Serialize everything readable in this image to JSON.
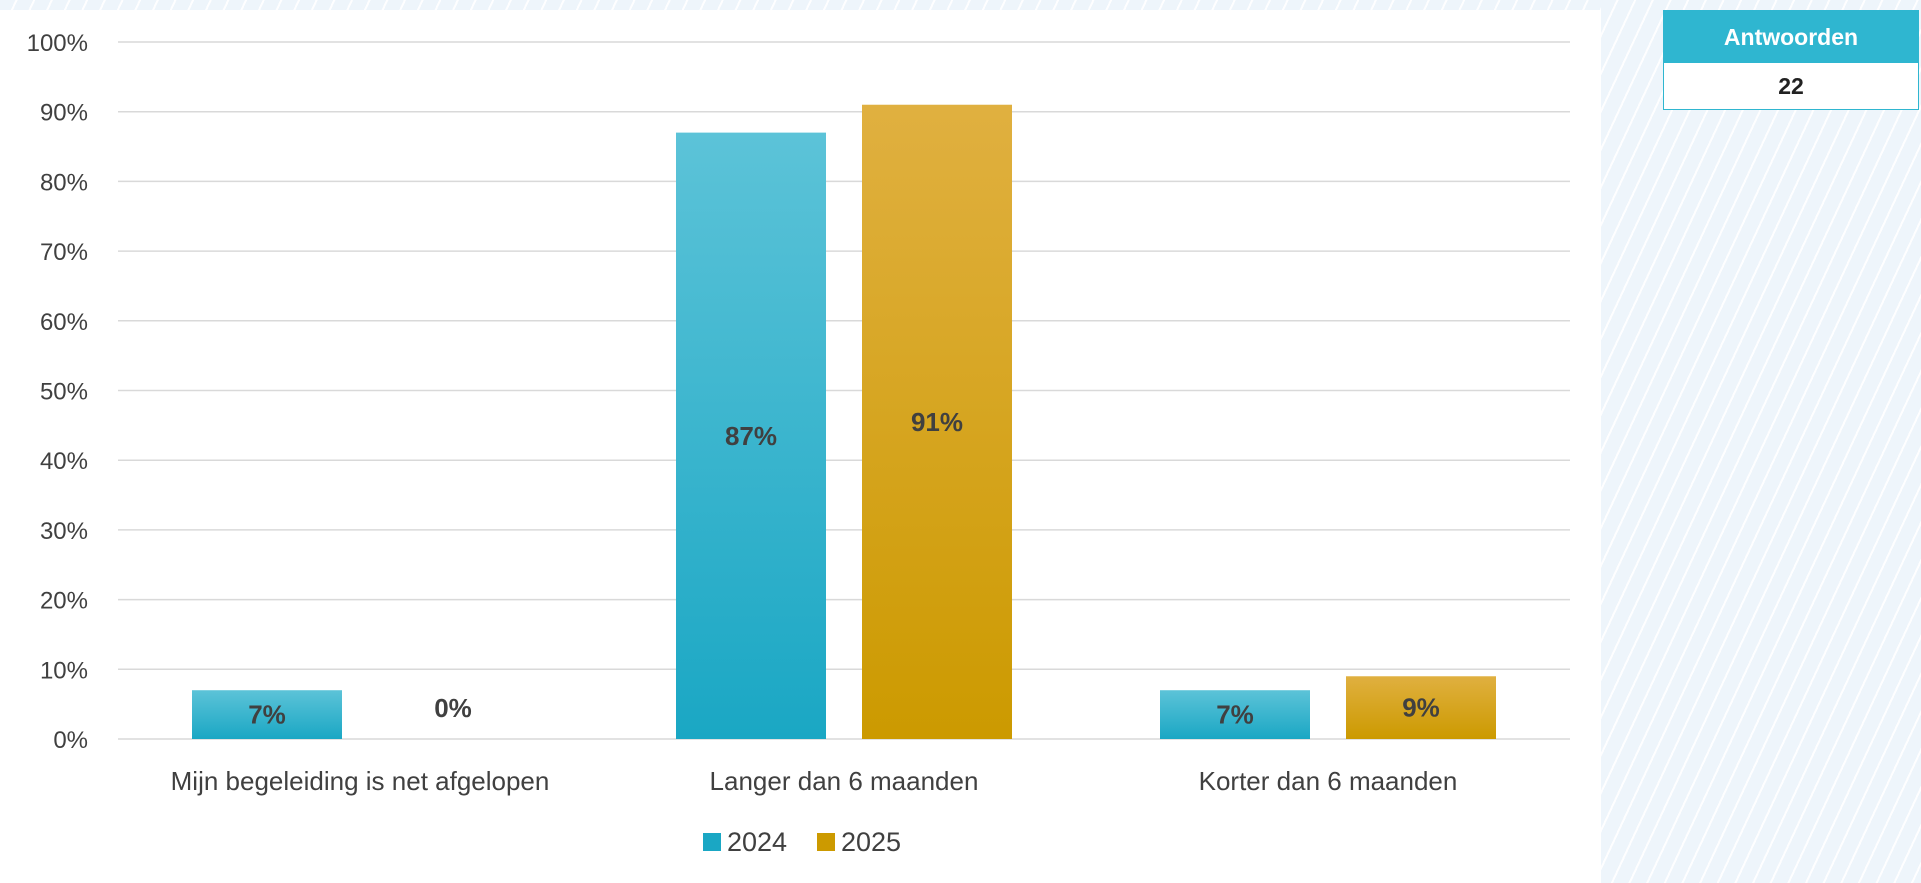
{
  "colors": {
    "series_2024_top": "#5cc3d8",
    "series_2024_bottom": "#1aa7c4",
    "series_2025_top": "#e0b040",
    "series_2025_bottom": "#cc9a00",
    "gridline": "#d9d9d9",
    "text": "#404040",
    "card_accent": "#2fb6d0"
  },
  "answers_card": {
    "header": "Antwoorden",
    "value": "22"
  },
  "chart_data": {
    "type": "bar",
    "categories": [
      "Mijn begeleiding is net afgelopen",
      "Langer dan 6 maanden",
      "Korter dan 6 maanden"
    ],
    "series": [
      {
        "name": "2024",
        "values": [
          7,
          87,
          7
        ],
        "labels": [
          "7%",
          "87%",
          "7%"
        ]
      },
      {
        "name": "2025",
        "values": [
          0,
          91,
          9
        ],
        "labels": [
          "0%",
          "91%",
          "9%"
        ]
      }
    ],
    "ylim": [
      0,
      100
    ],
    "yticks": [
      0,
      10,
      20,
      30,
      40,
      50,
      60,
      70,
      80,
      90,
      100
    ],
    "ytick_labels": [
      "0%",
      "10%",
      "20%",
      "30%",
      "40%",
      "50%",
      "60%",
      "70%",
      "80%",
      "90%",
      "100%"
    ],
    "grid": true,
    "legend_position": "bottom-center"
  }
}
